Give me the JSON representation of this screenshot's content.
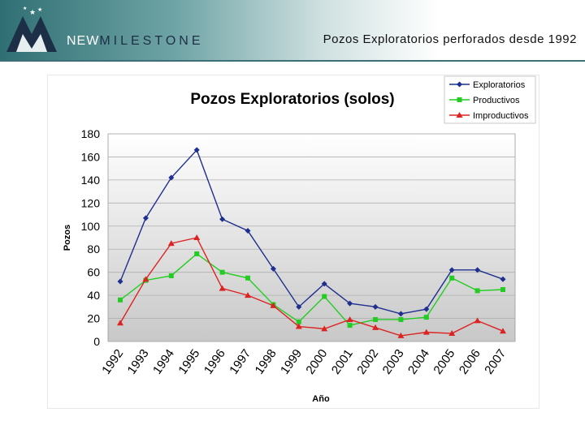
{
  "header": {
    "logo_prefix": "NEW",
    "logo_name": "MILESTONE",
    "slide_title": "Pozos Exploratorios perforados desde 1992"
  },
  "colors": {
    "header_dark": "#2f6f73",
    "exploratorios": "#1f2f8f",
    "productivos": "#22cc22",
    "improductivos": "#dd2222"
  },
  "chart_data": {
    "type": "line",
    "title": "Pozos Exploratorios (solos)",
    "xlabel": "Año",
    "ylabel": "Pozos",
    "ylim": [
      0,
      180
    ],
    "yticks": [
      0,
      20,
      40,
      60,
      80,
      100,
      120,
      140,
      160,
      180
    ],
    "grid": true,
    "legend_position": "top-right",
    "categories": [
      "1992",
      "1993",
      "1994",
      "1995",
      "1996",
      "1997",
      "1998",
      "1999",
      "2000",
      "2001",
      "2002",
      "2003",
      "2004",
      "2005",
      "2006",
      "2007"
    ],
    "series": [
      {
        "name": "Exploratorios",
        "color": "#1f2f8f",
        "marker": "diamond",
        "values": [
          52,
          107,
          142,
          166,
          106,
          96,
          63,
          30,
          50,
          33,
          30,
          24,
          28,
          62,
          62,
          54
        ]
      },
      {
        "name": "Productivos",
        "color": "#22cc22",
        "marker": "square",
        "values": [
          36,
          53,
          57,
          76,
          60,
          55,
          32,
          17,
          39,
          14,
          19,
          19,
          21,
          55,
          44,
          45
        ]
      },
      {
        "name": "Improductivos",
        "color": "#dd2222",
        "marker": "triangle",
        "values": [
          16,
          54,
          85,
          90,
          46,
          40,
          31,
          13,
          11,
          19,
          12,
          5,
          8,
          7,
          18,
          9
        ]
      }
    ]
  }
}
